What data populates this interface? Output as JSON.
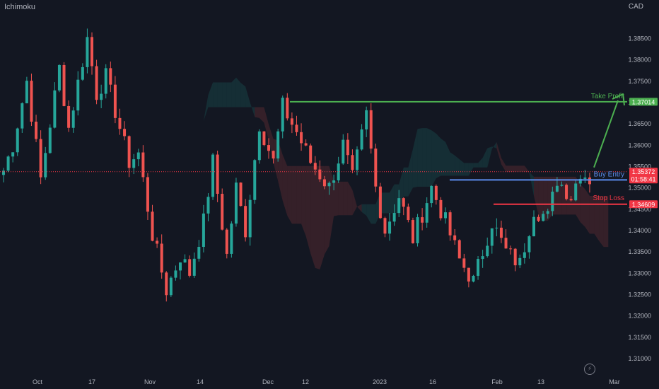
{
  "header": {
    "indicator": "Ichimoku",
    "currency": "CAD"
  },
  "colors": {
    "background": "#131722",
    "bull": "#26a69a",
    "bear": "#ef5350",
    "axis_text": "#b2b5be",
    "take_profit": "#4caf50",
    "buy_entry": "#5b8def",
    "stop_loss": "#f23645",
    "current_price": "#f23645"
  },
  "chart_data": {
    "type": "candlestick",
    "ylim": [
      1.3086,
      1.3903
    ],
    "y_ticks": [
      "1.38500",
      "1.38000",
      "1.37500",
      "1.37000",
      "1.36500",
      "1.36000",
      "1.35500",
      "1.35000",
      "1.34500",
      "1.34000",
      "1.33500",
      "1.33000",
      "1.32500",
      "1.32000",
      "1.31500",
      "1.31000"
    ],
    "x_ticks": [
      "Oct",
      "17",
      "Nov",
      "14",
      "Dec",
      "12",
      "2023",
      "16",
      "Feb",
      "13",
      "Mar"
    ],
    "price_path": [
      [
        0,
        1.354
      ],
      [
        2,
        1.36
      ],
      [
        5,
        1.375
      ],
      [
        8,
        1.352
      ],
      [
        12,
        1.378
      ],
      [
        14,
        1.364
      ],
      [
        18,
        1.385
      ],
      [
        20,
        1.372
      ],
      [
        22,
        1.376
      ],
      [
        25,
        1.364
      ],
      [
        27,
        1.356
      ],
      [
        29,
        1.358
      ],
      [
        32,
        1.339
      ],
      [
        35,
        1.326
      ],
      [
        38,
        1.334
      ],
      [
        40,
        1.33
      ],
      [
        43,
        1.342
      ],
      [
        45,
        1.356
      ],
      [
        48,
        1.334
      ],
      [
        50,
        1.35
      ],
      [
        52,
        1.34
      ],
      [
        55,
        1.365
      ],
      [
        58,
        1.356
      ],
      [
        60,
        1.369
      ],
      [
        63,
        1.363
      ],
      [
        66,
        1.356
      ],
      [
        70,
        1.35
      ],
      [
        73,
        1.36
      ],
      [
        75,
        1.352
      ],
      [
        78,
        1.367
      ],
      [
        80,
        1.35
      ],
      [
        82,
        1.34
      ],
      [
        85,
        1.348
      ],
      [
        88,
        1.338
      ],
      [
        92,
        1.35
      ],
      [
        95,
        1.342
      ],
      [
        98,
        1.333
      ],
      [
        101,
        1.328
      ],
      [
        105,
        1.342
      ],
      [
        108,
        1.335
      ],
      [
        111,
        1.332
      ],
      [
        114,
        1.345
      ],
      [
        117,
        1.343
      ],
      [
        119,
        1.352
      ],
      [
        122,
        1.348
      ],
      [
        124,
        1.354
      ],
      [
        126,
        1.352
      ]
    ],
    "annotations": {
      "take_profit": {
        "label": "Take Profit",
        "price": 1.3701,
        "price_label": "1.37014"
      },
      "buy_entry": {
        "label": "Buy Entry",
        "price": 1.3518
      },
      "stop_loss": {
        "label": "Stop Loss",
        "price": 1.34609,
        "price_label": "1.34609"
      },
      "current": {
        "price": 1.35372,
        "price_label": "1.35372",
        "countdown": "01:58:41"
      }
    }
  }
}
